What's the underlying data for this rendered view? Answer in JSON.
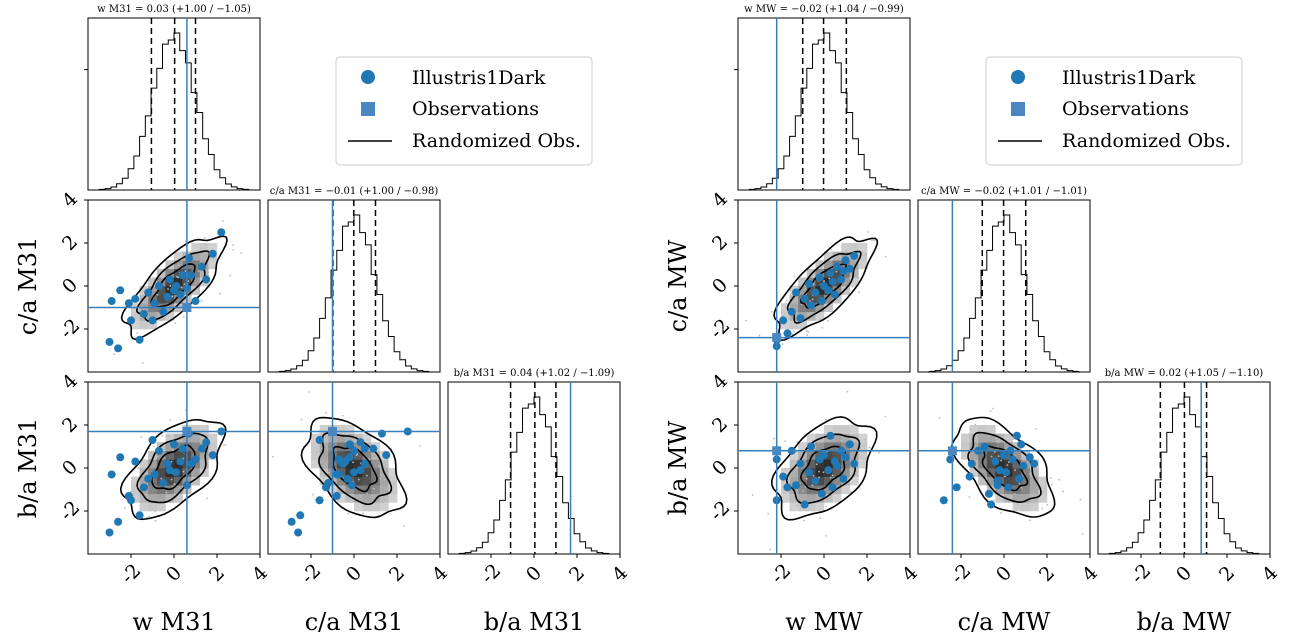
{
  "chart_data": [
    {
      "type": "corner",
      "variables": [
        {
          "key": "w",
          "label": "w M31",
          "lim": [
            -4,
            4
          ]
        },
        {
          "key": "ca",
          "label": "c/a M31",
          "lim": [
            -4,
            4
          ]
        },
        {
          "key": "ba",
          "label": "b/a M31",
          "lim": [
            -4,
            4
          ]
        }
      ],
      "titles": [
        "w M31 = 0.03 (+1.00 / −1.05)",
        "c/a M31 = −0.01 (+1.00 / −0.98)",
        "b/a M31 = 0.04 (+1.02 / −1.09)"
      ],
      "quantiles": [
        [
          -1.05,
          0.03,
          1.0
        ],
        [
          -0.98,
          -0.01,
          1.0
        ],
        [
          -1.09,
          0.04,
          1.02
        ]
      ],
      "observations": {
        "w": 0.6,
        "ca": -1.0,
        "ba": 1.7
      },
      "xticks": [
        -2,
        0,
        2,
        4
      ],
      "yticks": [
        -2,
        0,
        2,
        4
      ],
      "legend": [
        "Illustris1Dark",
        "Observations",
        "Randomized Obs."
      ],
      "legend_location": "upper-right",
      "simulation_points": [
        {
          "w": -3.0,
          "ca": -2.6,
          "ba": -3.0
        },
        {
          "w": -2.6,
          "ca": -2.9,
          "ba": -2.5
        },
        {
          "w": -2.9,
          "ca": -0.7,
          "ba": -0.3
        },
        {
          "w": -2.5,
          "ca": -0.2,
          "ba": 0.5
        },
        {
          "w": -2.1,
          "ca": -0.8,
          "ba": -1.3
        },
        {
          "w": -2.0,
          "ca": -1.6,
          "ba": -1.5
        },
        {
          "w": -1.8,
          "ca": -0.6,
          "ba": 0.3
        },
        {
          "w": -1.6,
          "ca": -2.5,
          "ba": -2.2
        },
        {
          "w": -1.4,
          "ca": -1.3,
          "ba": -0.9
        },
        {
          "w": -1.2,
          "ca": -0.3,
          "ba": -0.5
        },
        {
          "w": -1.0,
          "ca": -1.6,
          "ba": 1.3
        },
        {
          "w": -0.9,
          "ca": -0.8,
          "ba": -0.3
        },
        {
          "w": -0.7,
          "ca": 0.0,
          "ba": 0.8
        },
        {
          "w": -0.5,
          "ca": -1.2,
          "ba": -0.7
        },
        {
          "w": -0.3,
          "ca": -0.5,
          "ba": 0.2
        },
        {
          "w": -0.2,
          "ca": 0.3,
          "ba": -0.1
        },
        {
          "w": 0.0,
          "ca": -0.2,
          "ba": 1.1
        },
        {
          "w": 0.1,
          "ca": 0.0,
          "ba": -0.2
        },
        {
          "w": 0.3,
          "ca": -0.4,
          "ba": 0.3
        },
        {
          "w": 0.4,
          "ca": 0.5,
          "ba": 0.9
        },
        {
          "w": 0.6,
          "ca": -0.1,
          "ba": -0.8
        },
        {
          "w": 0.7,
          "ca": 1.3,
          "ba": 1.6
        },
        {
          "w": 0.8,
          "ca": 0.5,
          "ba": 0.2
        },
        {
          "w": 1.0,
          "ca": -0.7,
          "ba": 0.4
        },
        {
          "w": 1.3,
          "ca": 0.9,
          "ba": 0.9
        },
        {
          "w": 1.5,
          "ca": 0.3,
          "ba": 1.2
        },
        {
          "w": 1.8,
          "ca": 1.5,
          "ba": 0.6
        },
        {
          "w": 2.2,
          "ca": 2.5,
          "ba": 1.7
        }
      ]
    },
    {
      "type": "corner",
      "variables": [
        {
          "key": "w",
          "label": "w MW",
          "lim": [
            -4,
            4
          ]
        },
        {
          "key": "ca",
          "label": "c/a MW",
          "lim": [
            -4,
            4
          ]
        },
        {
          "key": "ba",
          "label": "b/a MW",
          "lim": [
            -4,
            4
          ]
        }
      ],
      "titles": [
        "w MW = −0.02 (+1.04 / −0.99)",
        "c/a MW = −0.02 (+1.01 / −1.01)",
        "b/a MW = 0.02 (+1.05 / −1.10)"
      ],
      "quantiles": [
        [
          -0.99,
          -0.02,
          1.04
        ],
        [
          -1.01,
          -0.02,
          1.01
        ],
        [
          -1.1,
          0.02,
          1.05
        ]
      ],
      "observations": {
        "w": -2.2,
        "ca": -2.4,
        "ba": 0.8
      },
      "xticks": [
        -2,
        0,
        2,
        4
      ],
      "yticks": [
        -2,
        0,
        2,
        4
      ],
      "legend": [
        "Illustris1Dark",
        "Observations",
        "Randomized Obs."
      ],
      "legend_location": "upper-right",
      "simulation_points": [
        {
          "w": -2.2,
          "ca": -2.8,
          "ba": -1.5
        },
        {
          "w": -2.2,
          "ca": -2.5,
          "ba": 0.4
        },
        {
          "w": -1.9,
          "ca": -1.6,
          "ba": -0.4
        },
        {
          "w": -1.7,
          "ca": -2.2,
          "ba": -0.9
        },
        {
          "w": -1.5,
          "ca": -1.2,
          "ba": 0.8
        },
        {
          "w": -1.3,
          "ca": -0.3,
          "ba": -0.8
        },
        {
          "w": -1.1,
          "ca": -1.5,
          "ba": 0.2
        },
        {
          "w": -0.9,
          "ca": -0.6,
          "ba": -1.7
        },
        {
          "w": -0.7,
          "ca": 0.1,
          "ba": -0.2
        },
        {
          "w": -0.6,
          "ca": -0.9,
          "ba": 1.0
        },
        {
          "w": -0.4,
          "ca": -0.3,
          "ba": -0.6
        },
        {
          "w": -0.2,
          "ca": 0.4,
          "ba": 0.4
        },
        {
          "w": -0.1,
          "ca": -0.7,
          "ba": -1.2
        },
        {
          "w": 0.0,
          "ca": 0.0,
          "ba": 0.6
        },
        {
          "w": 0.2,
          "ca": -0.2,
          "ba": -0.1
        },
        {
          "w": 0.3,
          "ca": 0.6,
          "ba": 1.5
        },
        {
          "w": 0.4,
          "ca": 0.2,
          "ba": -0.9
        },
        {
          "w": 0.5,
          "ca": -0.4,
          "ba": 0.3
        },
        {
          "w": 0.6,
          "ca": 0.9,
          "ba": 0.1
        },
        {
          "w": 0.8,
          "ca": 0.3,
          "ba": 0.8
        },
        {
          "w": 0.9,
          "ca": 0.7,
          "ba": -0.5
        },
        {
          "w": 1.0,
          "ca": 1.2,
          "ba": 0.5
        },
        {
          "w": 1.2,
          "ca": 0.8,
          "ba": 1.1
        },
        {
          "w": 1.4,
          "ca": 1.4,
          "ba": 0.2
        }
      ]
    }
  ],
  "colors": {
    "simulation": "#1f77b4",
    "observation_line": "#3a7fbd",
    "observation_marker": "#4a86c0",
    "contour": "#000000",
    "histogram": "#000000"
  }
}
